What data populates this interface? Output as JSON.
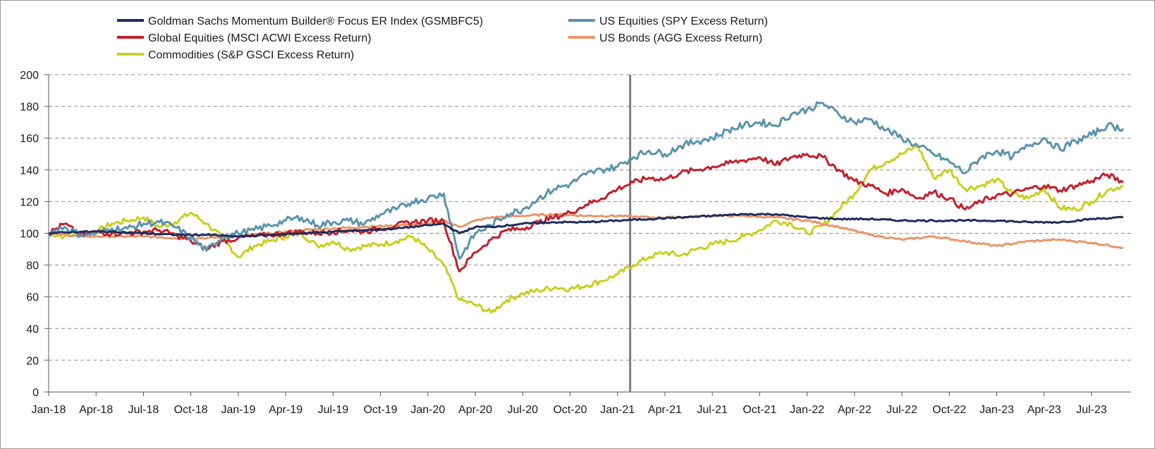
{
  "chart_data": {
    "type": "line",
    "title": "",
    "xlabel": "",
    "ylabel": "",
    "ylim": [
      0,
      200
    ],
    "y_ticks": [
      "0",
      "20",
      "40",
      "60",
      "80",
      "100",
      "120",
      "140",
      "160",
      "180",
      "200"
    ],
    "x_ticks": [
      "Jan-18",
      "Apr-18",
      "Jul-18",
      "Oct-18",
      "Jan-19",
      "Apr-19",
      "Jul-19",
      "Oct-19",
      "Jan-20",
      "Apr-20",
      "Jul-20",
      "Oct-20",
      "Jan-21",
      "Apr-21",
      "Jul-21",
      "Oct-21",
      "Jan-22",
      "Apr-22",
      "Jul-22",
      "Oct-22",
      "Jan-23",
      "Apr-23",
      "Jul-23"
    ],
    "x_range_months": [
      0,
      68.5
    ],
    "grid": "horizontal dashed",
    "legend_position": "top",
    "vertical_marker": {
      "x_month": 36.8,
      "color": "#7f7f7f"
    },
    "series": [
      {
        "name": "Goldman Sachs Momentum Builder® Focus ER Index (GSMBFC5)",
        "color": "#1f2d5c",
        "x": [
          0,
          2,
          4,
          6,
          8,
          10,
          12,
          14,
          16,
          18,
          20,
          22,
          24,
          25,
          26,
          27,
          28,
          30,
          32,
          34,
          36,
          38,
          40,
          42,
          44,
          46,
          48,
          50,
          52,
          54,
          56,
          58,
          60,
          62,
          64,
          66,
          68
        ],
        "values": [
          100,
          101,
          101,
          100,
          99,
          99,
          98,
          99,
          100,
          101,
          102,
          103,
          105,
          106,
          100,
          104,
          104,
          106,
          107,
          107,
          108,
          109,
          110,
          111,
          112,
          112,
          110,
          109,
          109,
          108,
          108,
          108,
          108,
          107,
          107,
          109,
          110
        ]
      },
      {
        "name": "US Equities (SPY Excess Return)",
        "color": "#5b93ad",
        "x": [
          0,
          1,
          2,
          3,
          4,
          5,
          6,
          7,
          8,
          9,
          10,
          11,
          12,
          13,
          14,
          15,
          16,
          17,
          18,
          19,
          20,
          21,
          22,
          23,
          24,
          25,
          26,
          27,
          28,
          29,
          30,
          31,
          32,
          33,
          34,
          35,
          36,
          37,
          38,
          39,
          40,
          41,
          42,
          43,
          44,
          45,
          46,
          47,
          48,
          49,
          50,
          51,
          52,
          53,
          54,
          55,
          56,
          57,
          58,
          59,
          60,
          61,
          62,
          63,
          64,
          65,
          66,
          67,
          68
        ],
        "values": [
          100,
          104,
          99,
          100,
          103,
          103,
          106,
          107,
          104,
          97,
          89,
          98,
          100,
          102,
          105,
          108,
          110,
          105,
          107,
          108,
          106,
          112,
          115,
          120,
          122,
          125,
          84,
          100,
          105,
          112,
          115,
          122,
          128,
          131,
          137,
          140,
          142,
          148,
          152,
          150,
          155,
          158,
          160,
          165,
          168,
          170,
          168,
          175,
          178,
          182,
          175,
          170,
          172,
          165,
          160,
          155,
          150,
          145,
          138,
          148,
          152,
          148,
          155,
          160,
          153,
          158,
          162,
          168,
          166
        ]
      },
      {
        "name": "Global Equities (MSCI ACWI Excess Return)",
        "color": "#c1202c",
        "x": [
          0,
          1,
          2,
          3,
          4,
          5,
          6,
          7,
          8,
          9,
          10,
          11,
          12,
          13,
          14,
          15,
          16,
          17,
          18,
          19,
          20,
          21,
          22,
          23,
          24,
          25,
          26,
          27,
          28,
          29,
          30,
          31,
          32,
          33,
          34,
          35,
          36,
          37,
          38,
          39,
          40,
          41,
          42,
          43,
          44,
          45,
          46,
          47,
          48,
          49,
          50,
          51,
          52,
          53,
          54,
          55,
          56,
          57,
          58,
          59,
          60,
          61,
          62,
          63,
          64,
          65,
          66,
          67,
          68
        ],
        "values": [
          100,
          106,
          99,
          101,
          100,
          100,
          101,
          102,
          99,
          95,
          90,
          95,
          97,
          98,
          99,
          100,
          101,
          100,
          101,
          102,
          101,
          103,
          105,
          107,
          108,
          108,
          76,
          88,
          96,
          102,
          103,
          107,
          110,
          113,
          118,
          122,
          128,
          132,
          135,
          134,
          138,
          140,
          142,
          144,
          146,
          148,
          143,
          148,
          150,
          148,
          140,
          133,
          130,
          125,
          128,
          122,
          126,
          122,
          115,
          120,
          124,
          125,
          128,
          130,
          127,
          130,
          133,
          137,
          132
        ]
      },
      {
        "name": "US Bonds (AGG Excess Return)",
        "color": "#e8956a",
        "x": [
          0,
          2,
          4,
          6,
          8,
          10,
          12,
          14,
          16,
          18,
          20,
          22,
          24,
          25,
          26,
          27,
          28,
          30,
          32,
          34,
          36,
          38,
          40,
          42,
          44,
          46,
          48,
          50,
          52,
          54,
          56,
          58,
          60,
          62,
          64,
          66,
          68
        ],
        "values": [
          100,
          98,
          98,
          98,
          97,
          97,
          98,
          100,
          102,
          103,
          104,
          105,
          106,
          108,
          104,
          108,
          110,
          111,
          112,
          111,
          111,
          110,
          110,
          111,
          111,
          110,
          108,
          104,
          99,
          96,
          98,
          95,
          92,
          95,
          96,
          94,
          91
        ]
      },
      {
        "name": "Commodities (S&P GSCI Excess Return)",
        "color": "#c9cf1e",
        "x": [
          0,
          1,
          2,
          3,
          4,
          5,
          6,
          7,
          8,
          9,
          10,
          11,
          12,
          13,
          14,
          15,
          16,
          17,
          18,
          19,
          20,
          21,
          22,
          23,
          24,
          25,
          26,
          27,
          28,
          29,
          30,
          31,
          32,
          33,
          34,
          35,
          36,
          37,
          38,
          39,
          40,
          41,
          42,
          43,
          44,
          45,
          46,
          47,
          48,
          49,
          50,
          51,
          52,
          53,
          54,
          55,
          56,
          57,
          58,
          59,
          60,
          61,
          62,
          63,
          64,
          65,
          66,
          67,
          68
        ],
        "values": [
          100,
          98,
          100,
          101,
          106,
          108,
          110,
          104,
          107,
          113,
          106,
          97,
          85,
          92,
          95,
          98,
          100,
          92,
          95,
          90,
          92,
          93,
          95,
          98,
          90,
          80,
          58,
          55,
          50,
          58,
          62,
          64,
          66,
          65,
          67,
          70,
          74,
          80,
          85,
          88,
          86,
          90,
          93,
          95,
          98,
          102,
          108,
          106,
          100,
          105,
          115,
          125,
          140,
          145,
          150,
          155,
          135,
          140,
          128,
          130,
          134,
          125,
          122,
          128,
          116,
          115,
          120,
          127,
          130
        ]
      }
    ]
  }
}
